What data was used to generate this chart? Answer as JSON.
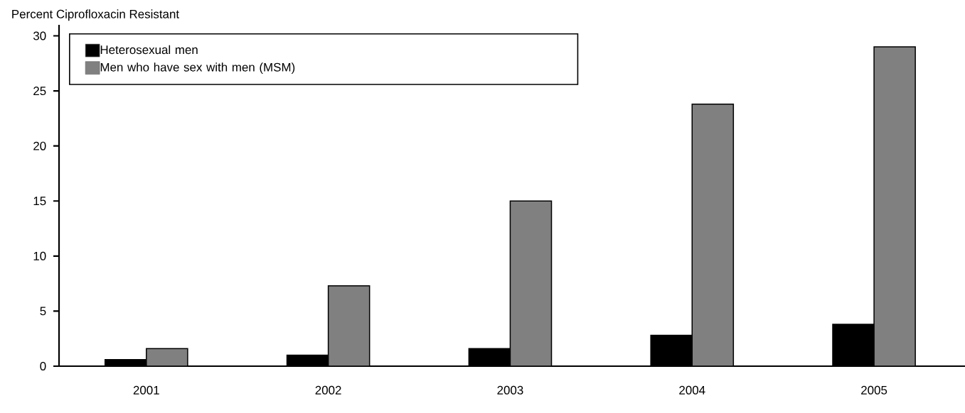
{
  "chart_data": {
    "type": "bar",
    "ylabel": "Percent Ciprofloxacin Resistant",
    "categories": [
      "2001",
      "2002",
      "2003",
      "2004",
      "2005"
    ],
    "series": [
      {
        "name": "Heterosexual men",
        "color": "#000000",
        "values": [
          0.6,
          1.0,
          1.6,
          2.8,
          3.8
        ]
      },
      {
        "name": "Men who have sex with men (MSM)",
        "color": "#808080",
        "values": [
          1.6,
          7.3,
          15.0,
          23.8,
          29.0
        ]
      }
    ],
    "ylim": [
      0,
      31
    ],
    "yticks": [
      0,
      5,
      10,
      15,
      20,
      25,
      30
    ],
    "legend": "top left"
  }
}
